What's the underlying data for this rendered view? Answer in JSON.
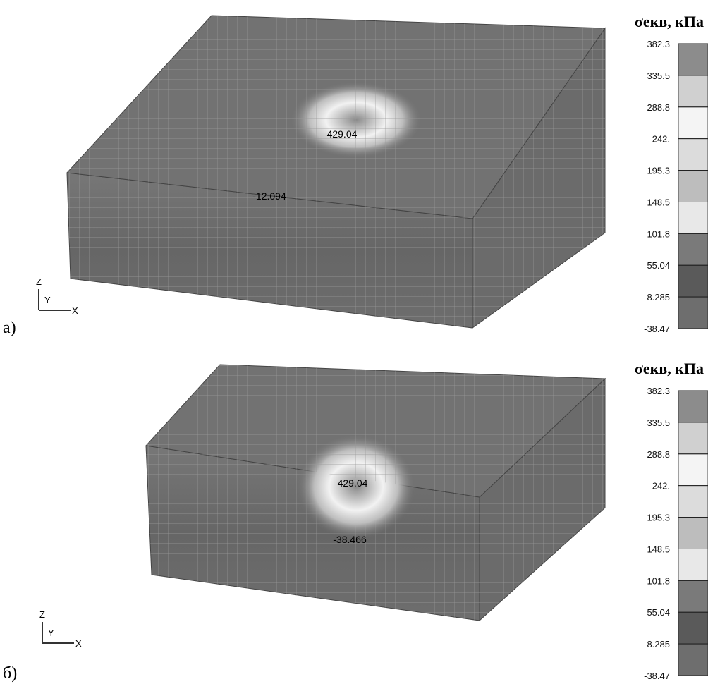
{
  "panels": [
    {
      "label": "а)",
      "legend_title": "σекв, кПа",
      "legend_ticks": [
        "382.3",
        "335.5",
        "288.8",
        "242.",
        "195.3",
        "148.5",
        "101.8",
        "55.04",
        "8.285",
        "-38.47"
      ],
      "annotations": [
        "429.04",
        "-12.094"
      ],
      "triad": [
        "Z",
        "Y",
        "X"
      ]
    },
    {
      "label": "б)",
      "legend_title": "σекв, кПа",
      "legend_ticks": [
        "382.3",
        "335.5",
        "288.8",
        "242.",
        "195.3",
        "148.5",
        "101.8",
        "55.04",
        "8.285",
        "-38.47"
      ],
      "annotations": [
        "429.04",
        "-38.466"
      ],
      "triad": [
        "Z",
        "Y",
        "X"
      ]
    }
  ]
}
